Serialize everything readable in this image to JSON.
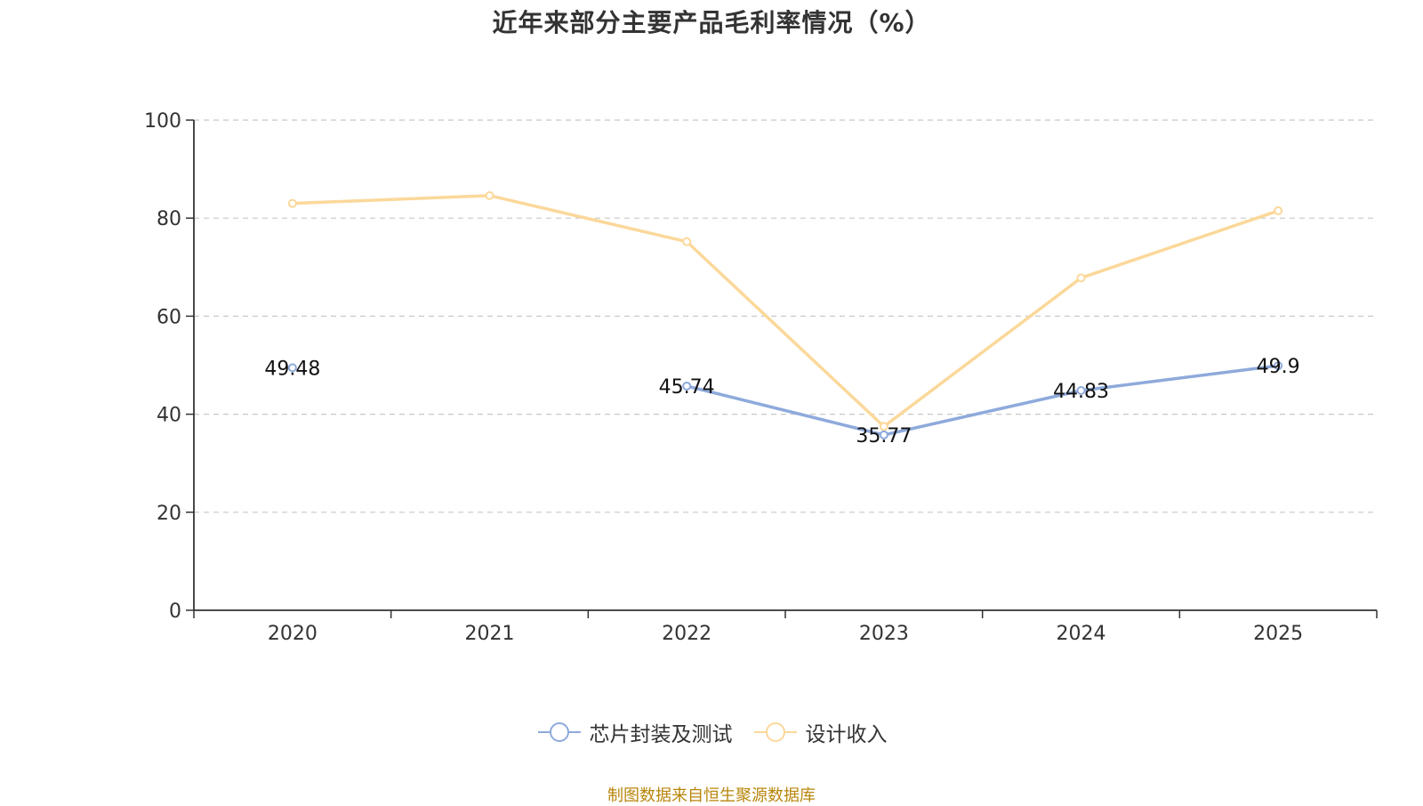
{
  "chart_data": {
    "type": "line",
    "title": "近年来部分主要产品毛利率情况（%）",
    "categories": [
      "2020",
      "2021",
      "2022",
      "2023",
      "2024",
      "2025"
    ],
    "ylim": [
      0,
      100
    ],
    "yticks": [
      0,
      20,
      40,
      60,
      80,
      100
    ],
    "grid": true,
    "legend_position": "bottom-center",
    "series": [
      {
        "name": "芯片封装及测试",
        "color": "#8eaadb",
        "values": [
          49.48,
          null,
          45.74,
          35.77,
          44.83,
          49.9
        ],
        "labels": [
          "49.48",
          "",
          "45.74",
          "35.77",
          "44.83",
          "49.9"
        ]
      },
      {
        "name": "设计收入",
        "color": "#fbd89a",
        "values": [
          83.0,
          84.6,
          75.2,
          37.5,
          67.8,
          81.5
        ],
        "labels": [
          "",
          "",
          "",
          "",
          "",
          ""
        ]
      }
    ]
  },
  "footer": {
    "source": "制图数据来自恒生聚源数据库"
  }
}
